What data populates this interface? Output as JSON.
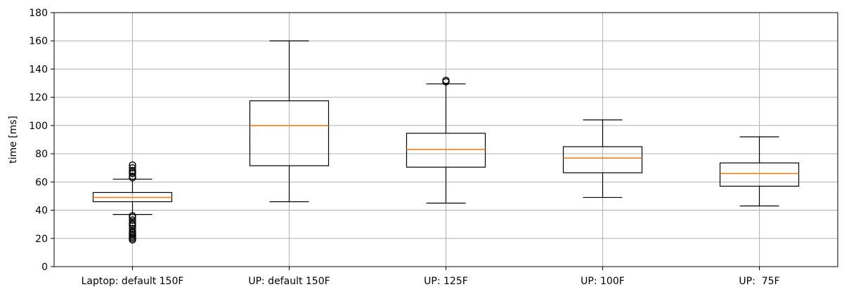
{
  "chart_data": {
    "type": "box",
    "title": "",
    "xlabel": "",
    "ylabel": "time [ms]",
    "ylim": [
      0,
      180
    ],
    "yticks": [
      0,
      20,
      40,
      60,
      80,
      100,
      120,
      140,
      160,
      180
    ],
    "grid": true,
    "colors": {
      "box": "#000000",
      "median": "#ff7f0e",
      "grid": "#b0b0b0"
    },
    "categories": [
      "Laptop: default 150F",
      "UP: default 150F",
      "UP: 125F",
      "UP: 100F",
      "UP:  75F"
    ],
    "boxes": [
      {
        "whisker_low": 37,
        "q1": 46,
        "median": 49,
        "q3": 52.5,
        "whisker_high": 62,
        "fliers": [
          63,
          64,
          66,
          67,
          68,
          70,
          72,
          36,
          35,
          33,
          31,
          30,
          29,
          27,
          25,
          24,
          23,
          22,
          21,
          20,
          19
        ]
      },
      {
        "whisker_low": 46,
        "q1": 71.5,
        "median": 100,
        "q3": 117.5,
        "whisker_high": 160,
        "fliers": []
      },
      {
        "whisker_low": 45,
        "q1": 70.5,
        "median": 83,
        "q3": 94.5,
        "whisker_high": 129.5,
        "fliers": [
          131,
          132
        ]
      },
      {
        "whisker_low": 49,
        "q1": 66.5,
        "median": 77,
        "q3": 85,
        "whisker_high": 104,
        "fliers": []
      },
      {
        "whisker_low": 43,
        "q1": 57,
        "median": 66,
        "q3": 73.5,
        "whisker_high": 92,
        "fliers": []
      }
    ]
  }
}
